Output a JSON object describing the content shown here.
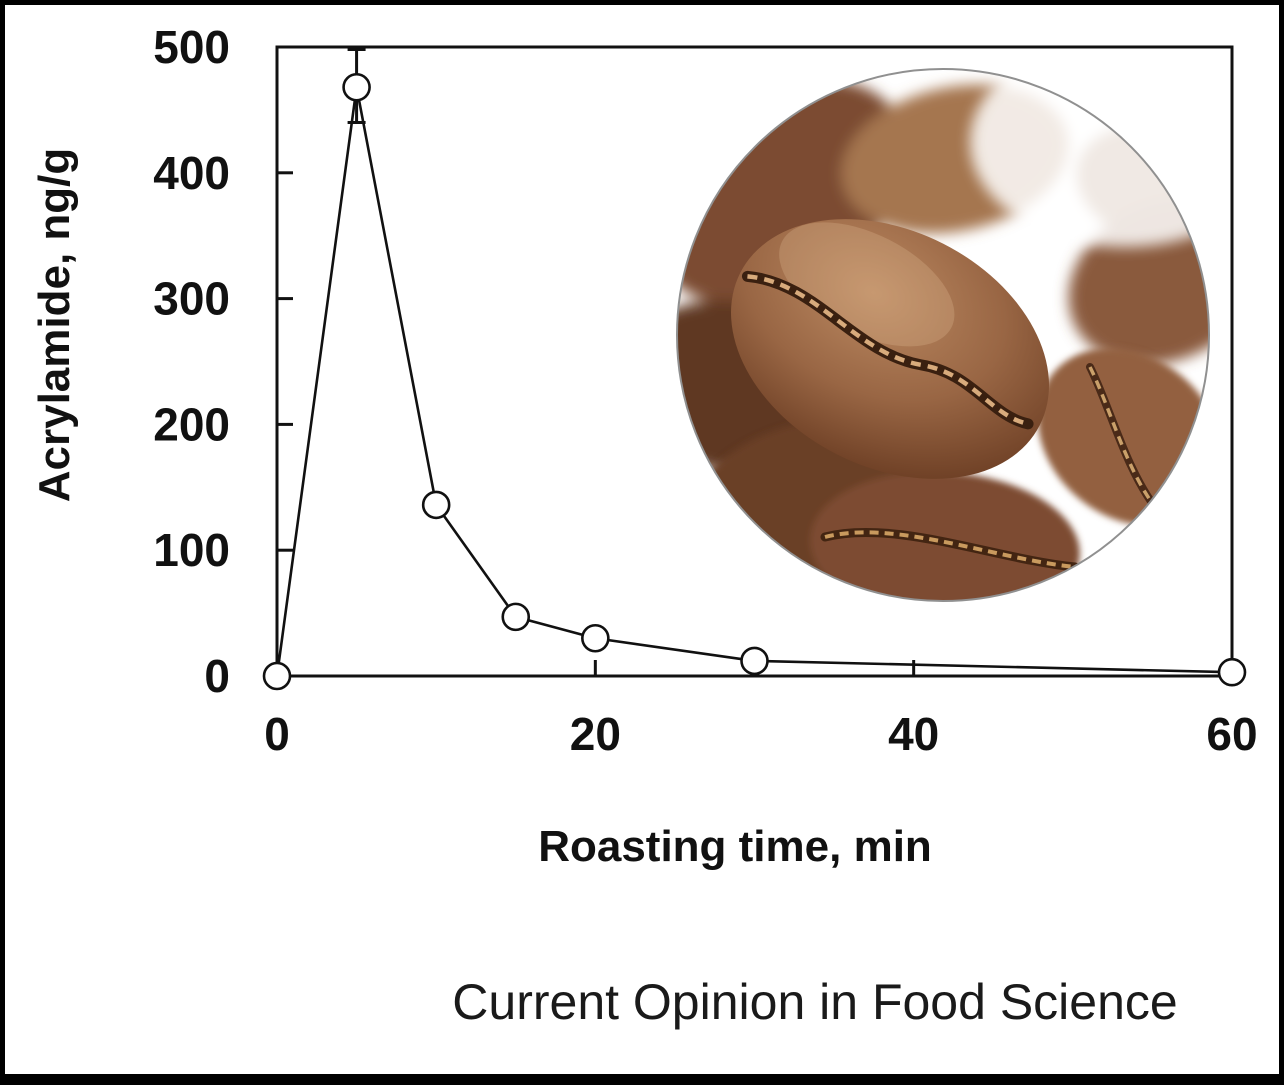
{
  "figure": {
    "caption": "Current Opinion in Food Science",
    "background": "#ffffff",
    "border_color": "#000000"
  },
  "inset_image": {
    "alt": "close-up photo of roasted coffee beans in a circular crop",
    "shape": "circle"
  },
  "colors": {
    "line": "#111111",
    "marker_fill": "#ffffff",
    "bean_dark": "#5e3823",
    "bean_mid": "#8a5639",
    "bean_light": "#a87757",
    "crease_gold": "#c99a5e"
  },
  "chart_data": {
    "type": "line",
    "title": "",
    "xlabel": "Roasting time, min",
    "ylabel": "Acrylamide, ng/g",
    "xlim": [
      0,
      60
    ],
    "ylim": [
      0,
      500
    ],
    "grid": false,
    "legend": false,
    "xticks": {
      "values": [
        0,
        20,
        40,
        60
      ],
      "labels": [
        "0",
        "20",
        "40",
        "60"
      ]
    },
    "yticks": {
      "values": [
        0,
        100,
        200,
        300,
        400,
        500
      ],
      "labels": [
        "0",
        "100",
        "200",
        "300",
        "400",
        "500"
      ]
    },
    "series": [
      {
        "name": "Acrylamide",
        "marker": "open-circle",
        "color": "#111111",
        "x": [
          0,
          5,
          10,
          15,
          20,
          30,
          60
        ],
        "y": [
          0,
          468,
          136,
          47,
          30,
          12,
          3
        ],
        "error_bars": [
          {
            "x": 5,
            "y": 468,
            "low": 440,
            "high": 498
          }
        ]
      }
    ]
  }
}
